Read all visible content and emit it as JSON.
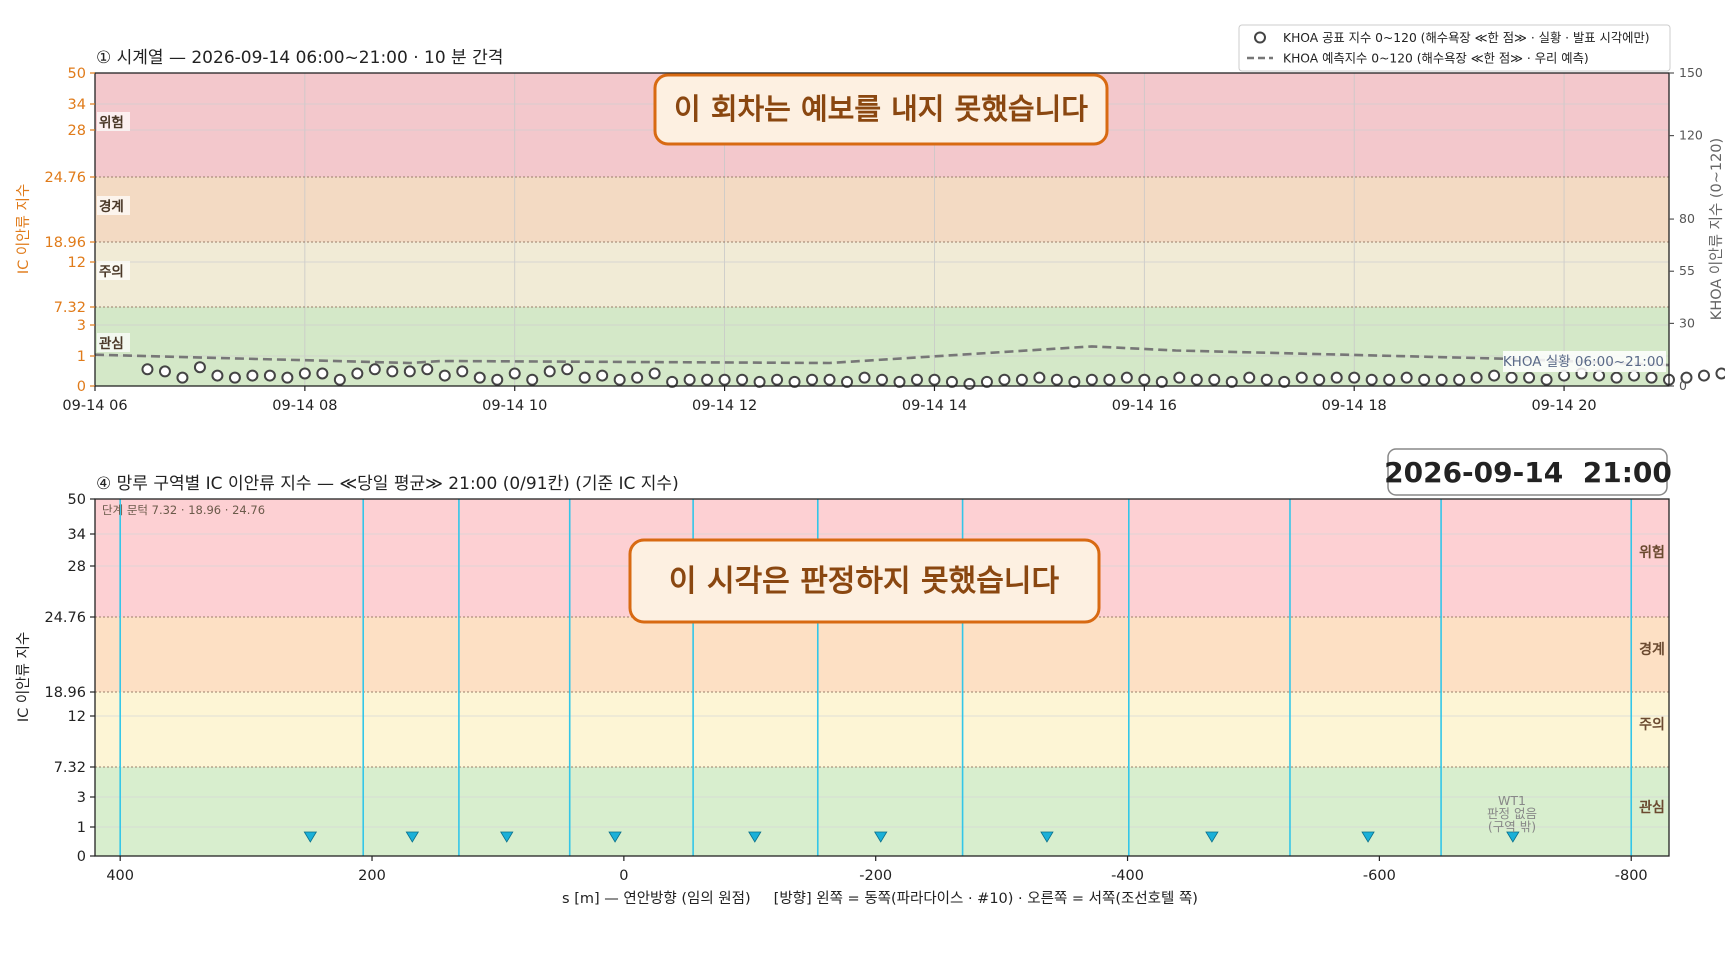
{
  "chart_data": [
    {
      "type": "scatter",
      "title": "① 시계열 — 2026-09-14 06:00~21:00 · 10 분 간격",
      "ylabel": "IC 이안류 지수",
      "ylabel_right": "KHOA 이안류 지수 (0~120)",
      "ylim": [
        0,
        50
      ],
      "ylim_right": [
        0,
        150
      ],
      "yticks": [
        "0",
        "1",
        "3",
        "7.32",
        "12",
        "18.96",
        "24.76",
        "28",
        "34",
        "50"
      ],
      "yticks_right": [
        "0",
        "30",
        "55",
        "80",
        "120",
        "150"
      ],
      "xticks": [
        "09-14 06",
        "09-14 08",
        "09-14 10",
        "09-14 12",
        "09-14 14",
        "09-14 16",
        "09-14 18",
        "09-14 20"
      ],
      "bands": [
        {
          "label": "관심",
          "color": "#d4e8c8"
        },
        {
          "label": "주의",
          "color": "#f1ebd6"
        },
        {
          "label": "경계",
          "color": "#f3dac3"
        },
        {
          "label": "위험",
          "color": "#f3c8cc"
        }
      ],
      "legend": [
        "KHOA 공표 지수 0~120 (해수욕장 ≪한 점≫ · 실황 · 발표 시각에만)",
        "KHOA 예측지수 0~120 (해수욕장 ≪한 점≫ · 우리 예측)"
      ],
      "legend_position": "top-right",
      "notice": "이 회차는 예보를 내지 못했습니다",
      "annotation": "KHOA 실황 06:00~21:00",
      "series": [
        {
          "kind": "markers",
          "x_start": "06:30",
          "x_step_minutes": 10,
          "values_khoa": [
            8,
            7,
            4,
            9,
            5,
            4,
            5,
            5,
            4,
            6,
            6,
            3,
            6,
            8,
            7,
            7,
            8,
            5,
            7,
            4,
            3,
            6,
            3,
            7,
            8,
            4,
            5,
            3,
            4,
            6,
            2,
            3,
            3,
            3,
            3,
            2,
            3,
            2,
            3,
            3,
            2,
            4,
            3,
            2,
            3,
            3,
            2,
            1,
            2,
            3,
            3,
            4,
            3,
            2,
            3,
            3,
            4,
            3,
            2,
            4,
            3,
            3,
            2,
            4,
            3,
            2,
            4,
            3,
            4,
            4,
            3,
            3,
            4,
            3,
            3,
            3,
            4,
            5,
            4,
            4,
            3,
            5,
            6,
            5,
            4,
            5,
            4,
            3,
            4,
            5,
            6,
            5,
            5,
            5,
            4,
            3,
            5,
            5,
            4,
            4,
            2,
            3,
            4,
            5,
            4,
            5,
            3,
            1,
            2,
            3,
            3,
            3,
            2,
            3,
            3,
            3,
            4,
            5,
            4,
            3,
            5,
            5,
            4,
            5,
            4,
            5,
            5,
            7,
            8,
            8,
            10,
            12,
            11,
            12,
            12,
            18,
            17,
            18,
            21,
            21,
            20,
            21,
            21,
            23,
            23,
            23,
            23,
            20,
            21,
            21,
            28,
            24,
            24,
            25,
            32,
            19,
            26,
            24,
            19,
            18,
            16,
            21,
            22,
            18,
            20,
            16,
            17,
            18,
            16,
            18,
            15,
            12,
            15,
            14,
            13,
            11,
            10,
            8,
            10,
            7,
            10,
            9,
            7,
            9,
            8,
            7,
            11,
            9,
            9,
            7,
            9,
            10,
            8,
            6,
            8,
            6,
            6,
            7,
            8,
            8,
            6,
            5,
            6,
            8,
            5,
            9,
            10,
            11,
            8,
            9,
            9,
            7,
            6,
            4,
            8,
            9,
            7,
            5,
            6
          ]
        },
        {
          "kind": "dashed",
          "name": "KHOA 예측지수",
          "x_hours": [
            6,
            9,
            9.3,
            13,
            15.5,
            16.3,
            19.5,
            21
          ],
          "values_khoa": [
            15,
            11,
            12,
            11,
            19,
            17,
            13,
            10
          ]
        }
      ]
    },
    {
      "type": "bar",
      "title": "④ 망루 구역별 IC 이안류 지수 — ≪당일 평균≫ 21:00  (0/91칸)   (기준 IC 지수)",
      "timestamp": "2026-09-14  21:00",
      "ylabel": "IC 이안류 지수",
      "xlabel": "s [m] — 연안방향 (임의 원점)     [방향] 왼쪽 = 동쪽(파라다이스 · #10) · 오른쪽 = 서쪽(조선호텔 쪽)",
      "xlim": [
        420,
        -830
      ],
      "xticks": [
        "400",
        "200",
        "0",
        "-200",
        "-400",
        "-600",
        "-800"
      ],
      "ylim": [
        0,
        50
      ],
      "yticks": [
        "0",
        "1",
        "3",
        "7.32",
        "12",
        "18.96",
        "24.76",
        "28",
        "34",
        "50"
      ],
      "bands": [
        {
          "label": "관심",
          "color": "#d8eece"
        },
        {
          "label": "주의",
          "color": "#fdf5d5"
        },
        {
          "label": "경계",
          "color": "#fde0c4"
        },
        {
          "label": "위험",
          "color": "#fdd0d3"
        }
      ],
      "threshold_note": "단계 문턱 7.32 · 18.96 · 24.76",
      "notice": "이 시각은 판정하지 못했습니다",
      "zone_boundaries_s": [
        400,
        207,
        131,
        43,
        -55,
        -154,
        -269,
        -401,
        -529,
        -649,
        -800
      ],
      "tower_markers_s": [
        249,
        168,
        93,
        7,
        -104,
        -204,
        -336,
        -467,
        -591,
        -706
      ],
      "wt1_label": [
        "WT1",
        "판정 없음",
        "(구역 밖)"
      ]
    }
  ]
}
